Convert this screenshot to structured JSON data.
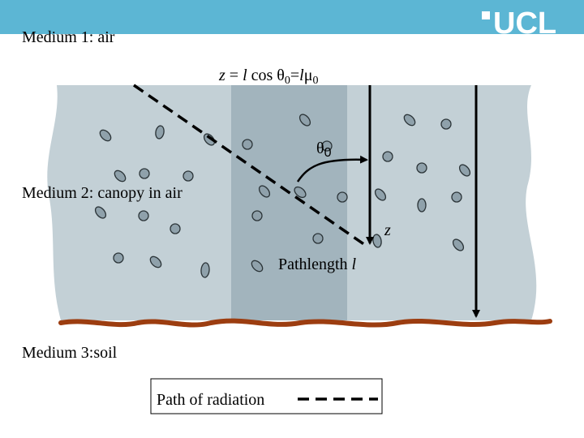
{
  "header": {
    "logo": "UCL"
  },
  "labels": {
    "medium1": "Medium 1: air",
    "medium2": "Medium 2: canopy in air",
    "medium3": "Medium 3:soil",
    "theta": {
      "symbol": "θ",
      "sub": "0"
    },
    "z": "z",
    "pathlength": {
      "text": "Pathlength ",
      "var": "l"
    }
  },
  "formula": {
    "parts": [
      "z",
      " = ",
      "l",
      " cos θ",
      "0",
      "=",
      "l",
      "μ",
      "0"
    ]
  },
  "legend": {
    "label": "Path of radiation"
  }
}
